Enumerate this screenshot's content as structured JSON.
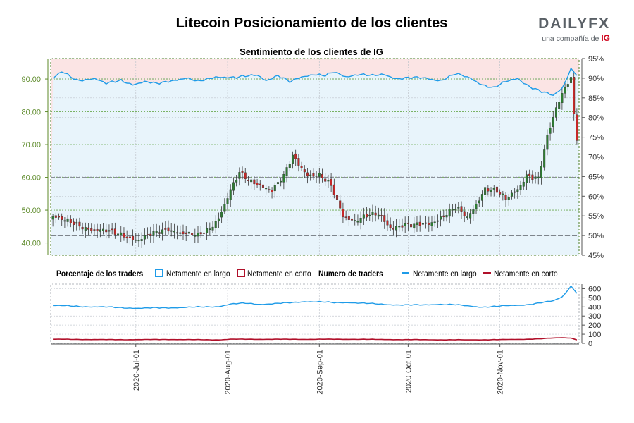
{
  "page": {
    "title": "Litecoin Posicionamiento de los clientes",
    "logo": {
      "word": "DAILYFX",
      "tagline": "una compañía de",
      "brand": "IG"
    }
  },
  "chart_data": [
    {
      "type": "candlestick+line",
      "title": "Sentimiento de los clientes de IG",
      "y_left": {
        "min": 36.25,
        "max": 96.25,
        "ticks": [
          "40.00",
          "50.00",
          "60.00",
          "70.00",
          "80.00",
          "90.00"
        ]
      },
      "y_right": {
        "min": 45,
        "max": 95,
        "ticks": [
          "45%",
          "50%",
          "55%",
          "60%",
          "65%",
          "70%",
          "75%",
          "80%",
          "85%",
          "90%",
          "95%"
        ]
      },
      "x_dates": [
        "2020-Jul-01",
        "2020-Aug-01",
        "2020-Sep-01",
        "2020-Oct-01",
        "2020-Nov-01"
      ],
      "days_count": 178,
      "date_tick_index": [
        28,
        59,
        90,
        120,
        151
      ],
      "reference_levels": {
        "long_fill_top_pct": 95,
        "price_dash_line": 60,
        "pct_dash_line": 50
      },
      "price_anchors": [
        [
          0,
          48.0
        ],
        [
          4,
          46.5
        ],
        [
          9,
          45.5
        ],
        [
          14,
          44.0
        ],
        [
          19,
          43.2
        ],
        [
          24,
          42.5
        ],
        [
          29,
          41.0
        ],
        [
          34,
          42.5
        ],
        [
          39,
          44.5
        ],
        [
          44,
          43.0
        ],
        [
          49,
          41.8
        ],
        [
          53,
          44.5
        ],
        [
          56,
          48.0
        ],
        [
          60,
          56.0
        ],
        [
          63,
          61.0
        ],
        [
          66,
          59.0
        ],
        [
          70,
          58.0
        ],
        [
          74,
          56.0
        ],
        [
          78,
          60.0
        ],
        [
          81,
          66.5
        ],
        [
          86,
          61.0
        ],
        [
          90,
          60.5
        ],
        [
          94,
          57.0
        ],
        [
          98,
          48.5
        ],
        [
          102,
          47.0
        ],
        [
          106,
          48.0
        ],
        [
          110,
          48.5
        ],
        [
          114,
          45.0
        ],
        [
          118,
          45.5
        ],
        [
          122,
          45.0
        ],
        [
          127,
          46.0
        ],
        [
          132,
          48.5
        ],
        [
          136,
          50.5
        ],
        [
          140,
          47.5
        ],
        [
          143,
          52.0
        ],
        [
          146,
          57.0
        ],
        [
          150,
          55.5
        ],
        [
          153,
          53.0
        ],
        [
          157,
          56.5
        ],
        [
          160,
          61.0
        ],
        [
          164,
          59.5
        ],
        [
          167,
          72.0
        ],
        [
          170,
          81.0
        ],
        [
          173,
          88.0
        ],
        [
          175,
          90.5
        ],
        [
          176,
          80.0
        ],
        [
          177,
          72.0
        ]
      ],
      "long_pct_anchors": [
        [
          0,
          90.0
        ],
        [
          3,
          91.5
        ],
        [
          8,
          89.5
        ],
        [
          14,
          90.0
        ],
        [
          18,
          88.5
        ],
        [
          23,
          89.5
        ],
        [
          27,
          88.5
        ],
        [
          31,
          89.0
        ],
        [
          35,
          88.5
        ],
        [
          40,
          89.5
        ],
        [
          45,
          90.0
        ],
        [
          49,
          89.0
        ],
        [
          55,
          90.5
        ],
        [
          62,
          90.0
        ],
        [
          69,
          91.0
        ],
        [
          72,
          89.5
        ],
        [
          76,
          90.5
        ],
        [
          80,
          89.0
        ],
        [
          84,
          90.5
        ],
        [
          88,
          91.0
        ],
        [
          92,
          90.5
        ],
        [
          95,
          91.5
        ],
        [
          99,
          90.5
        ],
        [
          103,
          91.0
        ],
        [
          108,
          90.5
        ],
        [
          112,
          91.0
        ],
        [
          116,
          90.0
        ],
        [
          121,
          90.0
        ],
        [
          126,
          90.0
        ],
        [
          131,
          89.5
        ],
        [
          136,
          91.0
        ],
        [
          141,
          90.0
        ],
        [
          145,
          88.5
        ],
        [
          149,
          87.5
        ],
        [
          153,
          89.0
        ],
        [
          157,
          90.0
        ],
        [
          161,
          88.0
        ],
        [
          165,
          86.5
        ],
        [
          169,
          85.5
        ],
        [
          172,
          87.5
        ],
        [
          175,
          92.5
        ],
        [
          177,
          91.0
        ]
      ],
      "short_pct_note": "short percent = 100 - long percent"
    },
    {
      "type": "line",
      "title": "Numero de traders",
      "y": {
        "min": 0,
        "max": 650,
        "ticks": [
          "0",
          "100",
          "200",
          "300",
          "400",
          "500",
          "600"
        ]
      },
      "legend": {
        "pct_title": "Porcentaje de los traders",
        "pct_long": "Netamente en largo",
        "pct_short": "Netamente en corto",
        "num_title": "Numero de traders",
        "num_long": "Netamente en largo",
        "num_short": "Netamente en corto"
      },
      "long_anchors": [
        [
          0,
          415
        ],
        [
          10,
          405
        ],
        [
          20,
          395
        ],
        [
          30,
          385
        ],
        [
          40,
          392
        ],
        [
          50,
          398
        ],
        [
          56,
          405
        ],
        [
          60,
          430
        ],
        [
          65,
          440
        ],
        [
          70,
          430
        ],
        [
          75,
          435
        ],
        [
          80,
          445
        ],
        [
          85,
          460
        ],
        [
          90,
          455
        ],
        [
          95,
          445
        ],
        [
          100,
          450
        ],
        [
          105,
          440
        ],
        [
          110,
          430
        ],
        [
          115,
          425
        ],
        [
          120,
          420
        ],
        [
          125,
          420
        ],
        [
          130,
          430
        ],
        [
          135,
          425
        ],
        [
          140,
          410
        ],
        [
          145,
          400
        ],
        [
          150,
          405
        ],
        [
          155,
          415
        ],
        [
          160,
          425
        ],
        [
          165,
          445
        ],
        [
          169,
          465
        ],
        [
          172,
          510
        ],
        [
          175,
          630
        ],
        [
          177,
          555
        ]
      ],
      "short_anchors": [
        [
          0,
          45
        ],
        [
          20,
          40
        ],
        [
          40,
          42
        ],
        [
          56,
          38
        ],
        [
          60,
          45
        ],
        [
          80,
          44
        ],
        [
          100,
          45
        ],
        [
          120,
          40
        ],
        [
          140,
          38
        ],
        [
          150,
          40
        ],
        [
          160,
          45
        ],
        [
          165,
          50
        ],
        [
          170,
          60
        ],
        [
          173,
          62
        ],
        [
          175,
          58
        ],
        [
          177,
          40
        ]
      ]
    }
  ],
  "colors": {
    "long": "#1e9be8",
    "short": "#b0102a",
    "candle_up": "#2e7d32",
    "candle_down": "#c62828",
    "long_fill": "#e8f4fb",
    "short_fill": "#fbe4e4",
    "grid_green": "#6aa84f",
    "axis_left": "#5d8a2a",
    "frame": "#4a7c23"
  }
}
